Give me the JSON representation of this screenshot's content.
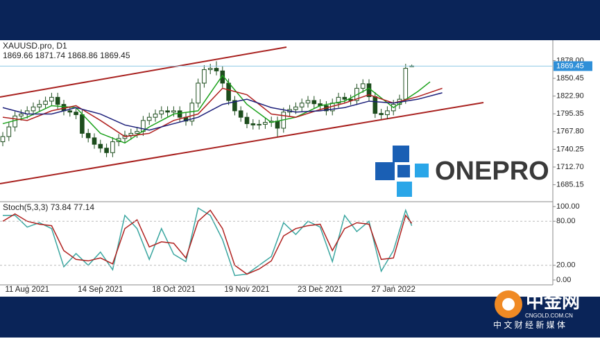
{
  "chart_data": {
    "type": "candlestick",
    "symbol_header": "XAUUSD.pro, D1",
    "ohlc_header": "1869.66 1871.74 1868.86 1869.45",
    "categories": [
      null,
      null,
      null,
      null,
      "11 Aug 2021",
      null,
      null,
      null,
      null,
      null,
      null,
      null,
      null,
      null,
      null,
      null,
      "14 Sep 2021",
      null,
      null,
      null,
      null,
      null,
      null,
      null,
      null,
      null,
      null,
      null,
      "18 Oct 2021",
      null,
      null,
      null,
      null,
      null,
      null,
      null,
      null,
      null,
      null,
      null,
      "19 Nov 2021",
      null,
      null,
      null,
      null,
      null,
      null,
      null,
      null,
      null,
      null,
      null,
      "23 Dec 2021",
      null,
      null,
      null,
      null,
      null,
      null,
      null,
      null,
      null,
      null,
      null,
      "27 Jan 2022",
      null,
      null,
      null
    ],
    "open": [
      1752,
      1760,
      1775,
      1792,
      1795,
      1800,
      1806,
      1810,
      1815,
      1821,
      1810,
      1800,
      1798,
      1794,
      1765,
      1758,
      1748,
      1742,
      1735,
      1752,
      1757,
      1762,
      1765,
      1768,
      1785,
      1790,
      1795,
      1800,
      1798,
      1800,
      1790,
      1784,
      1812,
      1843,
      1864,
      1866,
      1862,
      1843,
      1816,
      1800,
      1790,
      1780,
      1778,
      1779,
      1782,
      1784,
      1773,
      1798,
      1802,
      1806,
      1812,
      1816,
      1811,
      1808,
      1800,
      1812,
      1821,
      1818,
      1816,
      1835,
      1842,
      1822,
      1796,
      1794,
      1800,
      1810,
      1818,
      1869.66
    ],
    "high": [
      1767,
      1782,
      1799,
      1802,
      1807,
      1813,
      1817,
      1822,
      1828,
      1828,
      1817,
      1807,
      1805,
      1801,
      1772,
      1765,
      1755,
      1749,
      1759,
      1764,
      1769,
      1772,
      1775,
      1792,
      1797,
      1802,
      1807,
      1807,
      1807,
      1807,
      1797,
      1819,
      1850,
      1871,
      1873,
      1877,
      1869,
      1850,
      1823,
      1807,
      1797,
      1787,
      1786,
      1789,
      1791,
      1791,
      1805,
      1809,
      1813,
      1819,
      1823,
      1823,
      1818,
      1815,
      1819,
      1828,
      1828,
      1825,
      1842,
      1849,
      1849,
      1829,
      1803,
      1807,
      1817,
      1825,
      1873,
      1871.74
    ],
    "low": [
      1745,
      1753,
      1768,
      1785,
      1788,
      1793,
      1799,
      1803,
      1808,
      1803,
      1793,
      1791,
      1787,
      1758,
      1751,
      1741,
      1735,
      1728,
      1728,
      1745,
      1750,
      1755,
      1758,
      1761,
      1778,
      1783,
      1788,
      1791,
      1791,
      1783,
      1777,
      1777,
      1805,
      1836,
      1857,
      1855,
      1836,
      1809,
      1793,
      1783,
      1773,
      1771,
      1771,
      1772,
      1775,
      1760,
      1766,
      1791,
      1795,
      1799,
      1805,
      1804,
      1801,
      1793,
      1793,
      1805,
      1811,
      1809,
      1809,
      1828,
      1815,
      1789,
      1787,
      1787,
      1793,
      1803,
      1811,
      1868.86
    ],
    "close": [
      1760,
      1775,
      1792,
      1795,
      1800,
      1806,
      1810,
      1815,
      1821,
      1810,
      1800,
      1798,
      1794,
      1765,
      1758,
      1748,
      1742,
      1735,
      1752,
      1757,
      1762,
      1765,
      1768,
      1785,
      1790,
      1795,
      1800,
      1798,
      1800,
      1790,
      1784,
      1812,
      1843,
      1864,
      1866,
      1862,
      1843,
      1816,
      1800,
      1790,
      1780,
      1778,
      1779,
      1782,
      1784,
      1773,
      1798,
      1802,
      1806,
      1812,
      1816,
      1811,
      1808,
      1800,
      1812,
      1821,
      1818,
      1816,
      1835,
      1842,
      1822,
      1796,
      1794,
      1800,
      1810,
      1818,
      1866,
      1869.45
    ],
    "candle_color": "#1d4d1d",
    "series": [
      {
        "color": "#1aa11a",
        "x": [
          0,
          4,
          8,
          12,
          16,
          20,
          24,
          28,
          32,
          36,
          40,
          44,
          48,
          52,
          56,
          60,
          64,
          68,
          70
        ],
        "values": [
          1780,
          1790,
          1808,
          1805,
          1765,
          1750,
          1775,
          1795,
          1800,
          1855,
          1810,
          1782,
          1790,
          1808,
          1815,
          1835,
          1805,
          1830,
          1845
        ]
      },
      {
        "color": "#b0201e",
        "x": [
          0,
          4,
          8,
          12,
          16,
          20,
          24,
          28,
          32,
          36,
          40,
          44,
          48,
          52,
          56,
          60,
          64,
          68,
          72
        ],
        "values": [
          1790,
          1785,
          1800,
          1808,
          1785,
          1760,
          1765,
          1785,
          1795,
          1835,
          1825,
          1795,
          1790,
          1802,
          1812,
          1825,
          1812,
          1822,
          1835
        ]
      },
      {
        "color": "#1c1f7a",
        "x": [
          0,
          4,
          8,
          12,
          16,
          20,
          24,
          28,
          32,
          36,
          40,
          44,
          48,
          52,
          56,
          60,
          64,
          68,
          72
        ],
        "values": [
          1805,
          1795,
          1795,
          1805,
          1795,
          1778,
          1770,
          1780,
          1790,
          1810,
          1818,
          1805,
          1798,
          1800,
          1805,
          1815,
          1812,
          1818,
          1828
        ]
      }
    ],
    "current_price": 1869.45,
    "ylim": [
      1659.9,
      1905.4
    ],
    "yticks": [
      {
        "value": 1878,
        "label": "1878.00"
      },
      {
        "value": 1850.45,
        "label": "1850.45"
      },
      {
        "value": 1822.9,
        "label": "1822.90"
      },
      {
        "value": 1795.35,
        "label": "1795.35"
      },
      {
        "value": 1767.8,
        "label": "1767.80"
      },
      {
        "value": 1740.25,
        "label": "1740.25"
      },
      {
        "value": 1712.7,
        "label": "1712.70"
      },
      {
        "value": 1685.15,
        "label": "1685.15"
      }
    ],
    "indicator": {
      "type": "line",
      "title": "Stoch(5,3,3) 73.84 77.14",
      "x": [
        0,
        2,
        4,
        6,
        8,
        10,
        12,
        14,
        16,
        18,
        20,
        22,
        24,
        26,
        28,
        30,
        32,
        34,
        36,
        38,
        40,
        42,
        44,
        46,
        48,
        50,
        52,
        54,
        56,
        58,
        60,
        62,
        64,
        66,
        67
      ],
      "series": [
        {
          "color": "#3aa6a0",
          "values": [
            88,
            88,
            72,
            78,
            70,
            18,
            36,
            20,
            38,
            14,
            88,
            70,
            28,
            70,
            35,
            25,
            98,
            88,
            55,
            6,
            8,
            20,
            32,
            78,
            62,
            80,
            72,
            25,
            88,
            66,
            80,
            12,
            40,
            95,
            73.84
          ]
        },
        {
          "color": "#b0201e",
          "values": [
            80,
            90,
            80,
            76,
            74,
            40,
            28,
            26,
            30,
            22,
            70,
            82,
            45,
            52,
            50,
            30,
            80,
            95,
            70,
            20,
            8,
            15,
            26,
            60,
            70,
            74,
            76,
            40,
            70,
            78,
            76,
            28,
            30,
            88,
            77.14
          ]
        }
      ],
      "ylim": [
        -5.7,
        105.7
      ],
      "yticks": [
        {
          "value": 100,
          "label": "100.00"
        },
        {
          "value": 80,
          "label": "80.00"
        },
        {
          "value": 20,
          "label": "20.00"
        },
        {
          "value": 0,
          "label": "0.00"
        }
      ]
    }
  },
  "branding": {
    "logo": "ONEPRO",
    "site_name": "中金网",
    "site_url": "CNGOLD.COM.CN",
    "slogan": "中 文 财 经 新 媒 体"
  }
}
